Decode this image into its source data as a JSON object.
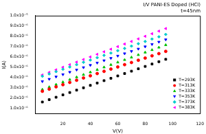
{
  "chart_data": {
    "type": "scatter",
    "title": "I/V PANI-ES Doped (HCl)",
    "subtitle": "t=45nm",
    "x_label": "V(V)",
    "y_label": "I(A)",
    "x": [
      5,
      10,
      15,
      20,
      25,
      30,
      35,
      40,
      45,
      50,
      55,
      60,
      65,
      70,
      75,
      80,
      85,
      90,
      95
    ],
    "series": [
      {
        "name": "T=293K",
        "color": "#000000",
        "marker": "square",
        "values": [
          1.63e-06,
          1.86e-06,
          2.09e-06,
          2.32e-06,
          2.55e-06,
          2.78e-06,
          3.01e-06,
          3.24e-06,
          3.47e-06,
          3.7e-06,
          3.93e-06,
          4.16e-06,
          4.39e-06,
          4.62e-06,
          4.85e-06,
          5.08e-06,
          5.31e-06,
          5.54e-06,
          5.77e-06
        ]
      },
      {
        "name": "T=313K",
        "color": "#ff0000",
        "marker": "circle",
        "values": [
          2.67e-06,
          2.88e-06,
          3.1e-06,
          3.31e-06,
          3.53e-06,
          3.74e-06,
          3.96e-06,
          4.17e-06,
          4.39e-06,
          4.6e-06,
          4.82e-06,
          5.03e-06,
          5.25e-06,
          5.46e-06,
          5.68e-06,
          5.89e-06,
          6.11e-06,
          6.32e-06,
          6.54e-06
        ]
      },
      {
        "name": "T=333K",
        "color": "#00c000",
        "marker": "triangle-up",
        "values": [
          2.84e-06,
          3.08e-06,
          3.32e-06,
          3.56e-06,
          3.8e-06,
          4.04e-06,
          4.28e-06,
          4.52e-06,
          4.76e-06,
          5e-06,
          5.24e-06,
          5.48e-06,
          5.72e-06,
          5.96e-06,
          6.2e-06,
          6.44e-06,
          6.68e-06,
          6.92e-06,
          7.16e-06
        ]
      },
      {
        "name": "T=353K",
        "color": "#0000ff",
        "marker": "triangle-down",
        "values": [
          3.63e-06,
          3.85e-06,
          4.08e-06,
          4.3e-06,
          4.53e-06,
          4.75e-06,
          4.98e-06,
          5.2e-06,
          5.43e-06,
          5.65e-06,
          5.88e-06,
          6.1e-06,
          6.33e-06,
          6.55e-06,
          6.78e-06,
          7e-06,
          7.23e-06,
          7.45e-06,
          7.68e-06
        ]
      },
      {
        "name": "T=373K",
        "color": "#00cccc",
        "marker": "diamond",
        "values": [
          4.13e-06,
          4.35e-06,
          4.58e-06,
          4.8e-06,
          5.03e-06,
          5.25e-06,
          5.48e-06,
          5.7e-06,
          5.93e-06,
          6.15e-06,
          6.38e-06,
          6.6e-06,
          6.83e-06,
          7.05e-06,
          7.28e-06,
          7.5e-06,
          7.73e-06,
          7.95e-06,
          8.18e-06
        ]
      },
      {
        "name": "T=383K",
        "color": "#ff00ff",
        "marker": "triangle-left",
        "values": [
          4.25e-06,
          4.5e-06,
          4.75e-06,
          5e-06,
          5.25e-06,
          5.5e-06,
          5.75e-06,
          6e-06,
          6.25e-06,
          6.5e-06,
          6.75e-06,
          7e-06,
          7.25e-06,
          7.5e-06,
          7.75e-06,
          8e-06,
          8.25e-06,
          8.5e-06,
          8.75e-06
        ]
      }
    ],
    "xlim": [
      0,
      120
    ],
    "xticks": [
      20,
      40,
      60,
      80,
      100,
      120
    ],
    "ylim": [
      5e-07,
      1e-05
    ],
    "yticks": [
      {
        "value": 1e-06,
        "label": "1.0x10⁻⁶"
      },
      {
        "value": 2e-06,
        "label": "2.0x10⁻⁶"
      },
      {
        "value": 3e-06,
        "label": "3.0x10⁻⁶"
      },
      {
        "value": 4e-06,
        "label": "4.0x10⁻⁶"
      },
      {
        "value": 5e-06,
        "label": "5.0x10⁻⁶"
      },
      {
        "value": 6e-06,
        "label": "6.0x10⁻⁶"
      },
      {
        "value": 7e-06,
        "label": "7.0x10⁻⁶"
      },
      {
        "value": 8e-06,
        "label": "8.0x10⁻⁶"
      },
      {
        "value": 9e-06,
        "label": "9.0x10⁻⁶"
      },
      {
        "value": 1e-05,
        "label": "1.0x10⁻⁵"
      }
    ],
    "grid": false,
    "legend": "lower right"
  }
}
